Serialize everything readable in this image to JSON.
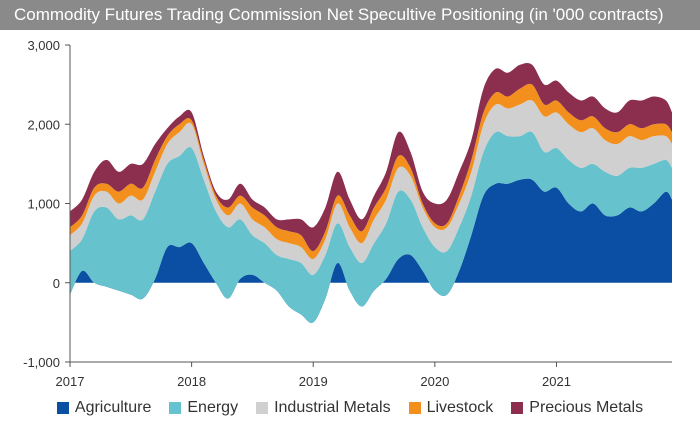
{
  "header": {
    "title": "Commodity Futures Trading Commission Net Specultive Positioning (in '000 contracts)"
  },
  "chart_data": {
    "type": "area",
    "stacked": true,
    "title": "Commodity Futures Trading Commission Net Specultive Positioning (in '000 contracts)",
    "xlabel": "",
    "ylabel": "",
    "x_range": [
      2017.0,
      2021.95
    ],
    "ylim": [
      -1000,
      3000
    ],
    "y_ticks": [
      "3,000",
      "2,000",
      "1,000",
      "0",
      "-1,000"
    ],
    "y_tick_values": [
      3000,
      2000,
      1000,
      0,
      -1000
    ],
    "x_tick_labels": [
      "2017",
      "2018",
      "2019",
      "2020",
      "2021"
    ],
    "x_tick_values": [
      2017,
      2018,
      2019,
      2020,
      2021
    ],
    "grid": false,
    "legend_position": "bottom",
    "x": [
      2017.0,
      2017.1,
      2017.2,
      2017.3,
      2017.4,
      2017.5,
      2017.6,
      2017.7,
      2017.8,
      2017.9,
      2018.0,
      2018.1,
      2018.2,
      2018.3,
      2018.4,
      2018.5,
      2018.6,
      2018.7,
      2018.8,
      2018.9,
      2019.0,
      2019.1,
      2019.2,
      2019.3,
      2019.4,
      2019.5,
      2019.6,
      2019.7,
      2019.8,
      2019.9,
      2020.0,
      2020.1,
      2020.2,
      2020.3,
      2020.4,
      2020.5,
      2020.6,
      2020.7,
      2020.8,
      2020.9,
      2021.0,
      2021.1,
      2021.2,
      2021.3,
      2021.4,
      2021.5,
      2021.6,
      2021.7,
      2021.8,
      2021.9,
      2021.95
    ],
    "series": [
      {
        "name": "Agriculture",
        "color": "#0a4fa3",
        "values": [
          -150,
          150,
          0,
          -50,
          -100,
          -150,
          -200,
          50,
          450,
          450,
          500,
          250,
          0,
          -200,
          50,
          100,
          0,
          -100,
          -300,
          -400,
          -500,
          -200,
          250,
          -100,
          -300,
          -100,
          50,
          300,
          350,
          150,
          -100,
          -150,
          150,
          600,
          1100,
          1250,
          1250,
          1300,
          1300,
          1150,
          1200,
          1000,
          900,
          1000,
          850,
          850,
          950,
          900,
          1000,
          1150,
          1050
        ]
      },
      {
        "name": "Energy",
        "color": "#66c2cc",
        "values": [
          550,
          400,
          900,
          1000,
          900,
          1000,
          1000,
          1100,
          1050,
          1150,
          1200,
          1050,
          900,
          900,
          750,
          500,
          500,
          450,
          600,
          650,
          600,
          550,
          500,
          550,
          550,
          600,
          700,
          850,
          700,
          550,
          550,
          550,
          550,
          500,
          550,
          650,
          600,
          550,
          600,
          500,
          500,
          550,
          550,
          500,
          550,
          500,
          500,
          550,
          500,
          400,
          400
        ]
      },
      {
        "name": "Industrial Metals",
        "color": "#d0d0d0",
        "values": [
          200,
          200,
          200,
          200,
          200,
          250,
          250,
          250,
          250,
          300,
          300,
          200,
          150,
          150,
          200,
          200,
          200,
          200,
          200,
          200,
          200,
          200,
          250,
          250,
          250,
          300,
          300,
          300,
          300,
          250,
          250,
          300,
          300,
          300,
          350,
          350,
          350,
          400,
          400,
          450,
          450,
          450,
          450,
          450,
          400,
          400,
          400,
          350,
          350,
          300,
          300
        ]
      },
      {
        "name": "Livestock",
        "color": "#f3901d",
        "values": [
          100,
          100,
          100,
          100,
          150,
          150,
          150,
          150,
          100,
          100,
          50,
          50,
          50,
          100,
          100,
          150,
          150,
          150,
          150,
          150,
          100,
          100,
          100,
          150,
          150,
          150,
          150,
          150,
          100,
          50,
          50,
          50,
          100,
          150,
          150,
          150,
          150,
          200,
          200,
          150,
          150,
          150,
          150,
          150,
          150,
          150,
          150,
          150,
          150,
          150,
          150
        ]
      },
      {
        "name": "Precious Metals",
        "color": "#8c2f4e",
        "values": [
          200,
          200,
          200,
          300,
          250,
          250,
          300,
          200,
          100,
          100,
          100,
          50,
          50,
          100,
          150,
          100,
          100,
          100,
          150,
          200,
          300,
          300,
          300,
          200,
          150,
          150,
          200,
          300,
          200,
          150,
          250,
          300,
          300,
          250,
          300,
          300,
          300,
          300,
          250,
          250,
          250,
          250,
          250,
          250,
          250,
          250,
          300,
          350,
          350,
          300,
          250
        ]
      }
    ]
  }
}
